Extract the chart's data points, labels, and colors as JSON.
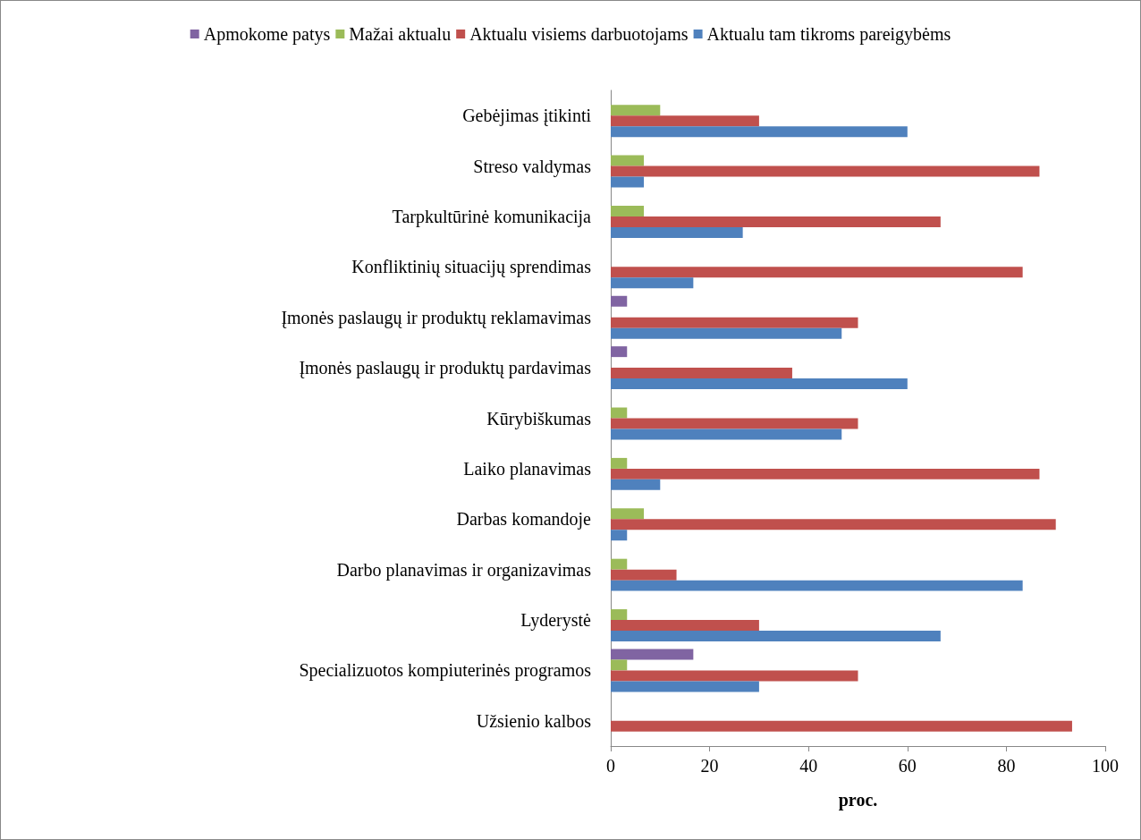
{
  "chart_data": {
    "type": "bar",
    "orientation": "horizontal",
    "xlabel": "proc.",
    "categories": [
      "Gebėjimas įtikinti",
      "Streso valdymas",
      "Tarpkultūrinė komunikacija",
      "Konfliktinių situacijų sprendimas",
      "Įmonės paslaugų ir produktų reklamavimas",
      "Įmonės paslaugų ir produktų pardavimas",
      "Kūrybiškumas",
      "Laiko planavimas",
      "Darbas komandoje",
      "Darbo planavimas ir organizavimas",
      "Lyderystė",
      "Specializuotos kompiuterinės programos",
      "Užsienio kalbos"
    ],
    "series": [
      {
        "name": "Apmokome patys",
        "color": "#8064a2",
        "values": [
          null,
          null,
          null,
          null,
          3.3,
          3.3,
          null,
          null,
          null,
          null,
          null,
          16.7,
          null
        ]
      },
      {
        "name": "Mažai aktualu",
        "color": "#9bbb59",
        "values": [
          10,
          6.7,
          6.7,
          null,
          null,
          null,
          3.3,
          3.3,
          6.7,
          3.3,
          3.3,
          3.3,
          null
        ]
      },
      {
        "name": "Aktualu visiems darbuotojams",
        "color": "#c0504d",
        "values": [
          30,
          86.7,
          66.7,
          83.3,
          50,
          36.7,
          50,
          86.7,
          90,
          13.3,
          30,
          50,
          93.3
        ]
      },
      {
        "name": "Aktualu tam tikroms pareigybėms",
        "color": "#4f81bd",
        "values": [
          60,
          6.7,
          26.7,
          16.7,
          46.7,
          60,
          46.7,
          10,
          3.3,
          83.3,
          66.7,
          30,
          null
        ]
      }
    ],
    "xlim": [
      0,
      100
    ],
    "xticks": [
      0,
      20,
      40,
      60,
      80,
      100
    ],
    "grid": false,
    "legend": "top"
  }
}
